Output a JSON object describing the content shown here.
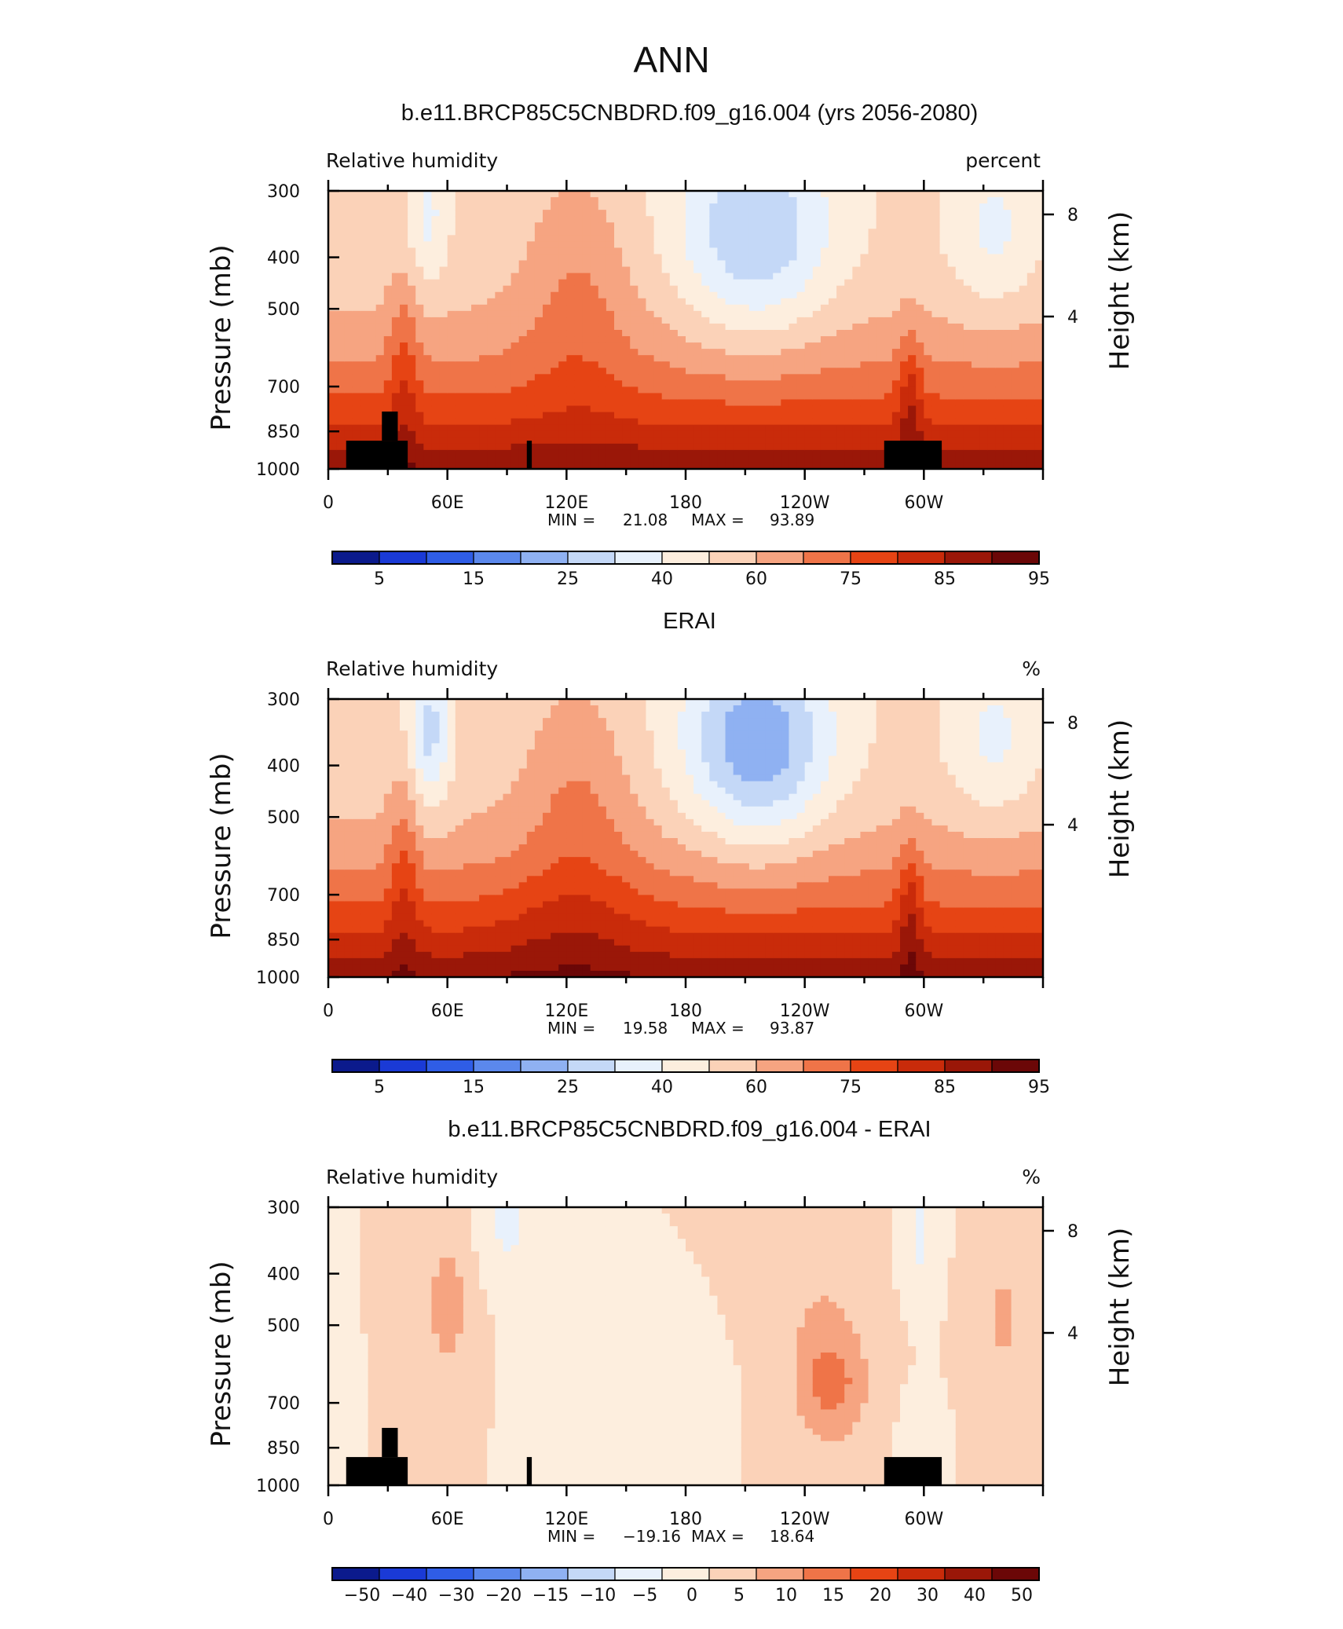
{
  "figure": {
    "main_title": "ANN"
  },
  "palettes": {
    "abs": [
      "#0b1a8c",
      "#1a3ad6",
      "#2f5de6",
      "#5b88ec",
      "#8fb1f2",
      "#c4d8f7",
      "#e8f1fc",
      "#fdeede",
      "#fbd2b8",
      "#f6a481",
      "#ef7448",
      "#e64414",
      "#c92b0a",
      "#9a1708",
      "#6b0707"
    ],
    "diff": [
      "#0b1a8c",
      "#1a3ad6",
      "#2f5de6",
      "#5b88ec",
      "#8fb1f2",
      "#c4d8f7",
      "#e8f1fc",
      "#fdeede",
      "#fbd2b8",
      "#f6a481",
      "#ef7448",
      "#e64414",
      "#c92b0a",
      "#9a1708",
      "#6b0707"
    ],
    "topography": "#000000"
  },
  "chart_data": [
    {
      "type": "heatmap",
      "title": "b.e11.BRCP85C5CNBDRD.f09_g16.004 (yrs 2056-2080)",
      "variable": "Relative humidity",
      "units": "percent",
      "xlabel": "",
      "ylabel": "Pressure (mb)",
      "ylabel_right": "Height (km)",
      "x_ticks": [
        "0",
        "60E",
        "120E",
        "180",
        "120W",
        "60W"
      ],
      "y_ticks": [
        "300",
        "400",
        "500",
        "700",
        "850",
        "1000"
      ],
      "y_right_ticks": [
        "8",
        "4"
      ],
      "stats": {
        "min_label": "MIN =",
        "min": "21.08",
        "max_label": "MAX =",
        "max": "93.89"
      },
      "colorbar_labels": [
        "5",
        "15",
        "25",
        "40",
        "60",
        "75",
        "85",
        "95"
      ],
      "palette": "abs",
      "field_range": [
        0,
        100
      ],
      "show_topography": true
    },
    {
      "type": "heatmap",
      "title": "ERAI",
      "variable": "Relative humidity",
      "units": "%",
      "xlabel": "",
      "ylabel": "Pressure (mb)",
      "ylabel_right": "Height (km)",
      "x_ticks": [
        "0",
        "60E",
        "120E",
        "180",
        "120W",
        "60W"
      ],
      "y_ticks": [
        "300",
        "400",
        "500",
        "700",
        "850",
        "1000"
      ],
      "y_right_ticks": [
        "8",
        "4"
      ],
      "stats": {
        "min_label": "MIN =",
        "min": "19.58",
        "max_label": "MAX =",
        "max": "93.87"
      },
      "colorbar_labels": [
        "5",
        "15",
        "25",
        "40",
        "60",
        "75",
        "85",
        "95"
      ],
      "palette": "abs",
      "field_range": [
        0,
        100
      ],
      "show_topography": false
    },
    {
      "type": "heatmap",
      "title": "b.e11.BRCP85C5CNBDRD.f09_g16.004 - ERAI",
      "variable": "Relative humidity",
      "units": "%",
      "xlabel": "",
      "ylabel": "Pressure (mb)",
      "ylabel_right": "Height (km)",
      "x_ticks": [
        "0",
        "60E",
        "120E",
        "180",
        "120W",
        "60W"
      ],
      "y_ticks": [
        "300",
        "400",
        "500",
        "700",
        "850",
        "1000"
      ],
      "y_right_ticks": [
        "8",
        "4"
      ],
      "stats": {
        "min_label": "MIN =",
        "min": "−19.16",
        "max_label": "MAX =",
        "max": "18.64"
      },
      "colorbar_labels": [
        "−50",
        "−40",
        "−30",
        "−20",
        "−15",
        "−10",
        "−5",
        "0",
        "5",
        "10",
        "15",
        "20",
        "30",
        "40",
        "50"
      ],
      "palette": "diff",
      "field_range": [
        -60,
        60
      ],
      "show_topography": true
    }
  ]
}
